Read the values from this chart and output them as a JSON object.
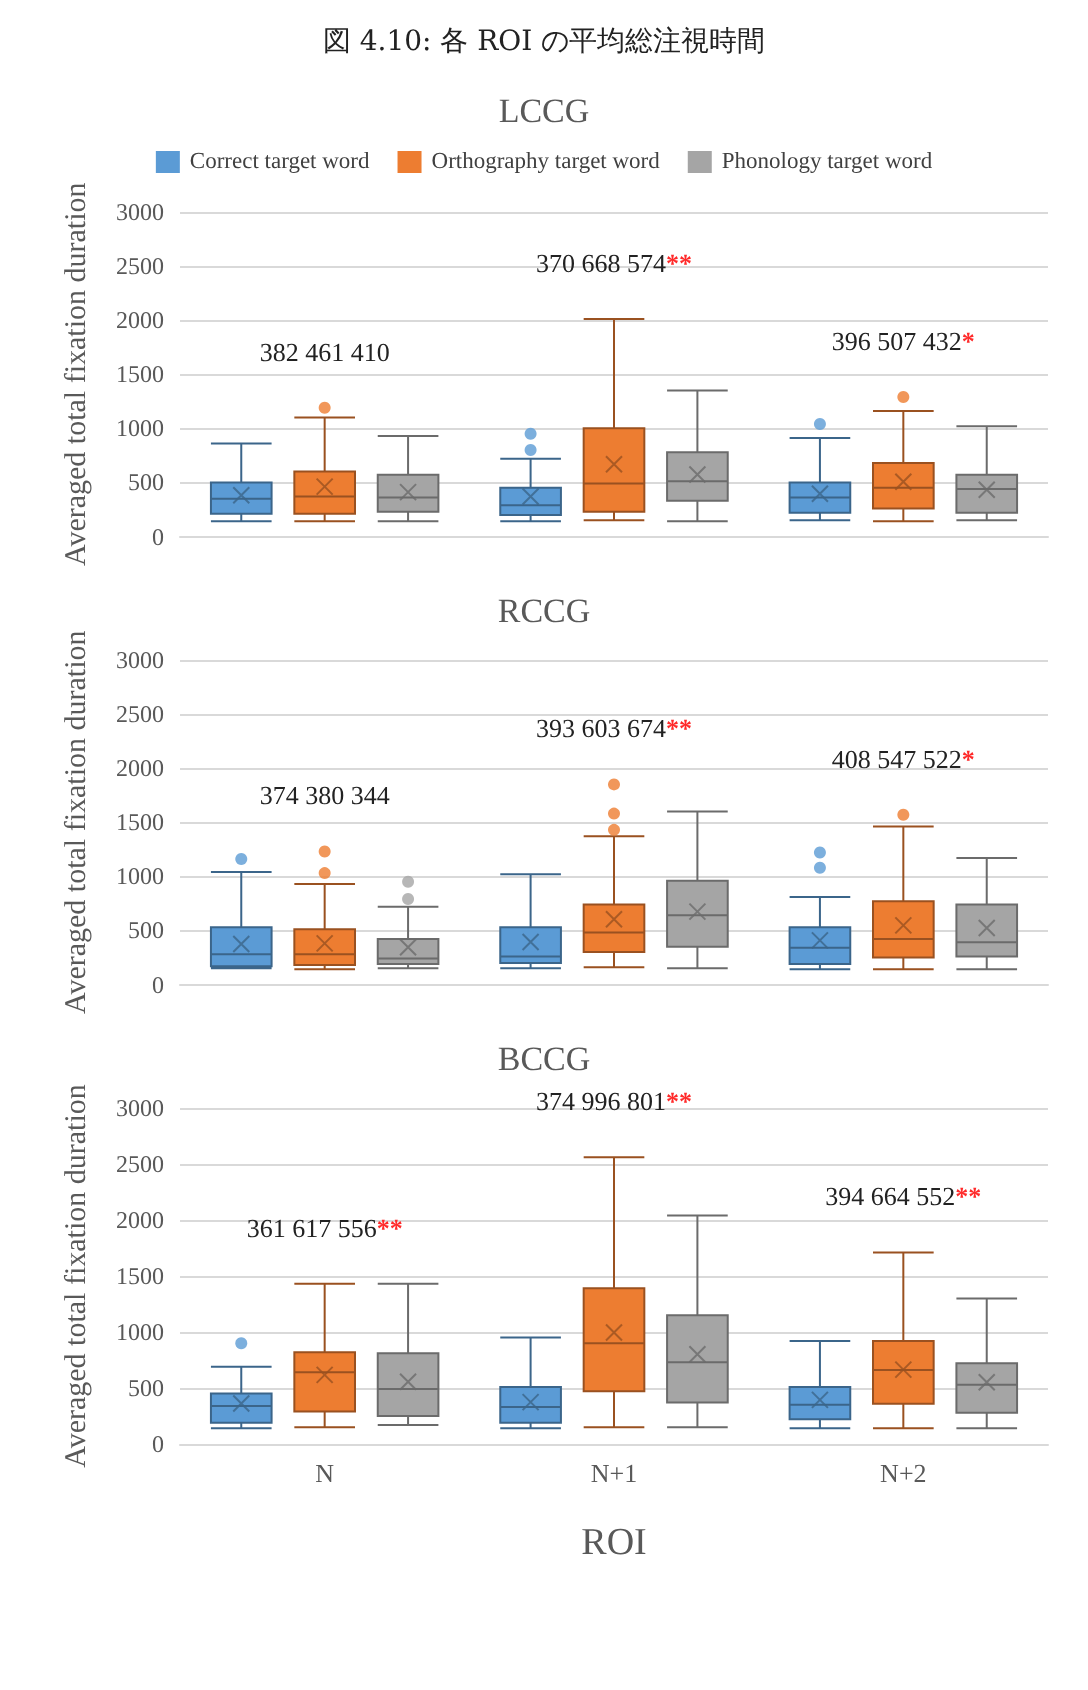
{
  "chart_data": [
    {
      "type": "box",
      "title": "LCCG",
      "categories": [
        null,
        null,
        null
      ],
      "ylabel": "Averaged total fixation duration",
      "ylim": [
        0,
        3000
      ],
      "yticks": [
        0,
        500,
        1000,
        1500,
        2000,
        2500,
        3000
      ],
      "grid": "y",
      "legend": "top",
      "tick_labels": "y",
      "annotations": [
        "図 4.10: 各 ROI の平均総注視時間",
        "382 461 410",
        "370 668 574**",
        "396 507 432*"
      ],
      "series": [
        {
          "name": "Correct target word",
          "color": "#5b9bd5",
          "boxes": [
            {
              "low": 140,
              "q1": 210,
              "median": 350,
              "q3": 500,
              "high": 860,
              "mean": 382
            },
            {
              "low": 140,
              "q1": 200,
              "median": 290,
              "q3": 450,
              "high": 720,
              "mean": 370,
              "outliers": [
                800,
                950
              ]
            },
            {
              "low": 150,
              "q1": 220,
              "median": 360,
              "q3": 500,
              "high": 910,
              "mean": 396,
              "outliers": [
                1040
              ]
            }
          ]
        },
        {
          "name": "Orthography target word",
          "color": "#ed7d31",
          "boxes": [
            {
              "low": 140,
              "q1": 210,
              "median": 370,
              "q3": 600,
              "high": 1100,
              "mean": 461,
              "outliers": [
                1190
              ]
            },
            {
              "low": 150,
              "q1": 230,
              "median": 490,
              "q3": 1000,
              "high": 2010,
              "mean": 668
            },
            {
              "low": 140,
              "q1": 260,
              "median": 450,
              "q3": 680,
              "high": 1160,
              "mean": 507,
              "outliers": [
                1290
              ]
            }
          ]
        },
        {
          "name": "Phonology target word",
          "color": "#a5a5a5",
          "boxes": [
            {
              "low": 140,
              "q1": 230,
              "median": 360,
              "q3": 570,
              "high": 930,
              "mean": 410
            },
            {
              "low": 140,
              "q1": 330,
              "median": 510,
              "q3": 780,
              "high": 1350,
              "mean": 574
            },
            {
              "low": 150,
              "q1": 220,
              "median": 440,
              "q3": 570,
              "high": 1020,
              "mean": 432
            }
          ]
        }
      ]
    },
    {
      "type": "box",
      "title": "RCCG",
      "categories": [
        null,
        null,
        null
      ],
      "ylabel": "Averaged total fixation duration",
      "ylim": [
        0,
        3000
      ],
      "yticks": [
        0,
        500,
        1000,
        1500,
        2000,
        2500,
        3000
      ],
      "grid": "y",
      "tick_labels": "y",
      "annotations": [
        "374 380 344",
        "393 603 674**",
        "408 547 522*"
      ],
      "series": [
        {
          "color": "#5b9bd5",
          "boxes": [
            {
              "low": 150,
              "q1": 170,
              "median": 280,
              "q3": 530,
              "high": 1040,
              "mean": 374,
              "outliers": [
                1160
              ]
            },
            {
              "low": 150,
              "q1": 200,
              "median": 260,
              "q3": 530,
              "high": 1020,
              "mean": 393
            },
            {
              "low": 140,
              "q1": 190,
              "median": 340,
              "q3": 530,
              "high": 810,
              "mean": 408,
              "outliers": [
                1080,
                1220
              ]
            }
          ]
        },
        {
          "color": "#ed7d31",
          "boxes": [
            {
              "low": 140,
              "q1": 180,
              "median": 280,
              "q3": 510,
              "high": 930,
              "mean": 380,
              "outliers": [
                1030,
                1230
              ]
            },
            {
              "low": 160,
              "q1": 300,
              "median": 480,
              "q3": 740,
              "high": 1370,
              "mean": 603,
              "outliers": [
                1430,
                1580,
                1850
              ]
            },
            {
              "low": 140,
              "q1": 250,
              "median": 420,
              "q3": 770,
              "high": 1460,
              "mean": 547,
              "outliers": [
                1570
              ]
            }
          ]
        },
        {
          "color": "#a5a5a5",
          "boxes": [
            {
              "low": 150,
              "q1": 190,
              "median": 240,
              "q3": 420,
              "high": 720,
              "mean": 344,
              "outliers": [
                790,
                950
              ]
            },
            {
              "low": 150,
              "q1": 350,
              "median": 640,
              "q3": 960,
              "high": 1600,
              "mean": 674
            },
            {
              "low": 140,
              "q1": 260,
              "median": 390,
              "q3": 740,
              "high": 1170,
              "mean": 522
            }
          ]
        }
      ]
    },
    {
      "type": "box",
      "title": "BCCG",
      "categories": [
        "N",
        "N+1",
        "N+2"
      ],
      "xlabel": "ROI",
      "ylabel": "Averaged total fixation duration",
      "ylim": [
        0,
        3000
      ],
      "yticks": [
        0,
        500,
        1000,
        1500,
        2000,
        2500,
        3000
      ],
      "grid": "y",
      "annotations": [
        "361 617 556**",
        "374 996 801**",
        "394 664 552**"
      ],
      "series": [
        {
          "color": "#5b9bd5",
          "boxes": [
            {
              "low": 140,
              "q1": 190,
              "median": 340,
              "q3": 450,
              "high": 690,
              "mean": 361,
              "outliers": [
                900
              ]
            },
            {
              "low": 140,
              "q1": 190,
              "median": 330,
              "q3": 510,
              "high": 950,
              "mean": 374
            },
            {
              "low": 140,
              "q1": 220,
              "median": 350,
              "q3": 510,
              "high": 920,
              "mean": 394
            }
          ]
        },
        {
          "color": "#ed7d31",
          "boxes": [
            {
              "low": 150,
              "q1": 290,
              "median": 640,
              "q3": 820,
              "high": 1430,
              "mean": 617
            },
            {
              "low": 150,
              "q1": 470,
              "median": 900,
              "q3": 1390,
              "high": 2560,
              "mean": 996
            },
            {
              "low": 140,
              "q1": 360,
              "median": 660,
              "q3": 920,
              "high": 1710,
              "mean": 664
            }
          ]
        },
        {
          "color": "#a5a5a5",
          "boxes": [
            {
              "low": 170,
              "q1": 250,
              "median": 490,
              "q3": 810,
              "high": 1430,
              "mean": 556
            },
            {
              "low": 150,
              "q1": 370,
              "median": 730,
              "q3": 1150,
              "high": 2040,
              "mean": 801
            },
            {
              "low": 140,
              "q1": 280,
              "median": 530,
              "q3": 720,
              "high": 1300,
              "mean": 552
            }
          ]
        }
      ]
    }
  ]
}
